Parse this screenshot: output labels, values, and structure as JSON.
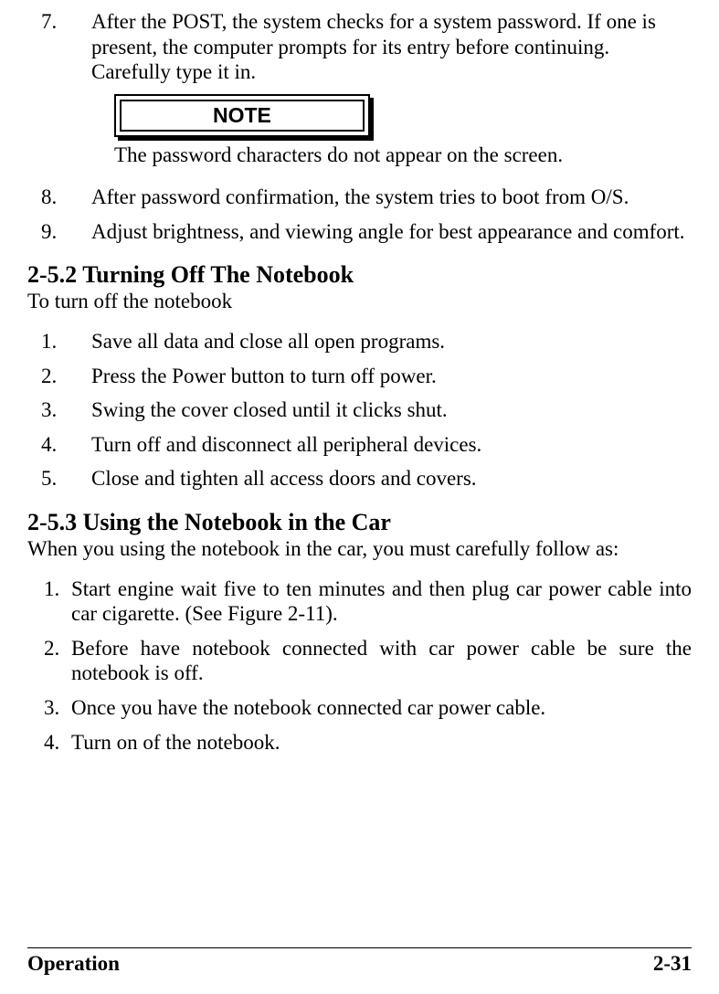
{
  "topList": {
    "item7": {
      "num": "7.",
      "text": "After the POST, the system checks for a system password. If one is present, the computer prompts for its entry before continuing. Carefully type it in."
    },
    "item8": {
      "num": "8.",
      "text": "After password confirmation, the system tries to boot from O/S."
    },
    "item9": {
      "num": "9.",
      "text": "Adjust brightness, and viewing angle for best appearance and comfort."
    }
  },
  "note": {
    "label": "NOTE",
    "text": "The password characters do not appear on the screen."
  },
  "section252": {
    "heading": "2-5.2  Turning Off The Notebook",
    "intro": "To turn off the notebook",
    "items": {
      "i1": {
        "num": "1.",
        "text": "Save all data and close all open programs."
      },
      "i2": {
        "num": "2.",
        "text": "Press the Power button to turn off power."
      },
      "i3": {
        "num": "3.",
        "text": "Swing the cover closed until it clicks shut."
      },
      "i4": {
        "num": "4.",
        "text": "Turn off and disconnect all peripheral devices."
      },
      "i5": {
        "num": "5.",
        "text": "Close and tighten all access doors and covers."
      }
    }
  },
  "section253": {
    "heading": "2-5.3  Using the Notebook in the Car",
    "intro": "When  you using the notebook in the car, you must carefully follow as:",
    "items": {
      "i1": {
        "num": "1.",
        "text": "Start engine wait five to ten minutes and  then plug car power cable into car cigarette. (See Figure 2-11)."
      },
      "i2": {
        "num": "2.",
        "text": "Before have notebook connected with car power cable be sure the notebook is off."
      },
      "i3": {
        "num": "3.",
        "text": "Once you have the notebook connected car power cable."
      },
      "i4": {
        "num": "4.",
        "text": "Turn on of the notebook."
      }
    }
  },
  "footer": {
    "left": "Operation",
    "right": "2-31"
  }
}
